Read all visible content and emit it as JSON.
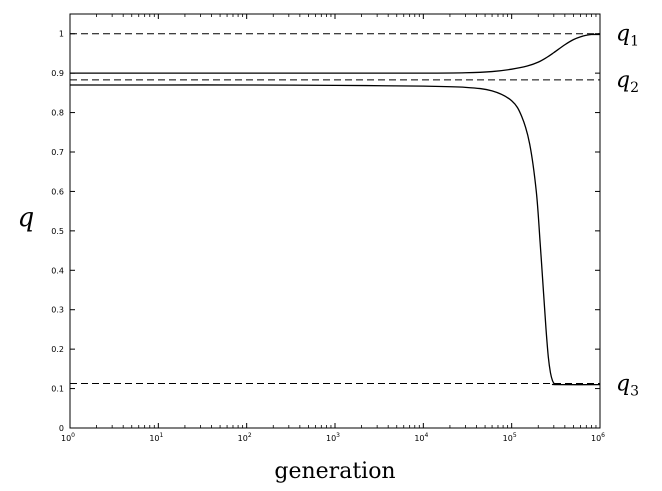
{
  "chart_data": {
    "type": "line",
    "xscale": "log",
    "xlim": [
      1,
      1000000
    ],
    "ylim": [
      0,
      1.05
    ],
    "xlabel": "generation",
    "ylabel": "q",
    "x_ticks": [
      {
        "value": 1,
        "base": "10",
        "exp": "0"
      },
      {
        "value": 10,
        "base": "10",
        "exp": "1"
      },
      {
        "value": 100,
        "base": "10",
        "exp": "2"
      },
      {
        "value": 1000,
        "base": "10",
        "exp": "3"
      },
      {
        "value": 10000,
        "base": "10",
        "exp": "4"
      },
      {
        "value": 100000,
        "base": "10",
        "exp": "5"
      },
      {
        "value": 1000000,
        "base": "10",
        "exp": "6"
      }
    ],
    "y_ticks": [
      {
        "value": 0,
        "label": "0"
      },
      {
        "value": 0.1,
        "label": "0.1"
      },
      {
        "value": 0.2,
        "label": "0.2"
      },
      {
        "value": 0.3,
        "label": "0.3"
      },
      {
        "value": 0.4,
        "label": "0.4"
      },
      {
        "value": 0.5,
        "label": "0.5"
      },
      {
        "value": 0.6,
        "label": "0.6"
      },
      {
        "value": 0.7,
        "label": "0.7"
      },
      {
        "value": 0.8,
        "label": "0.8"
      },
      {
        "value": 0.9,
        "label": "0.9"
      },
      {
        "value": 1,
        "label": "1"
      }
    ],
    "reference_lines": [
      {
        "value": 1.0,
        "base": "q",
        "sub": "1"
      },
      {
        "value": 0.883,
        "base": "q",
        "sub": "2"
      },
      {
        "value": 0.113,
        "base": "q",
        "sub": "3"
      }
    ],
    "series": [
      {
        "x": [
          1,
          10,
          100,
          1000,
          10000,
          30000,
          60000,
          100000,
          150000,
          200000,
          250000,
          300000,
          400000,
          500000,
          600000,
          700000,
          800000,
          1000000
        ],
        "y": [
          0.9,
          0.9,
          0.9,
          0.9,
          0.9,
          0.901,
          0.904,
          0.91,
          0.918,
          0.928,
          0.94,
          0.952,
          0.972,
          0.985,
          0.992,
          0.996,
          0.998,
          0.998
        ]
      },
      {
        "x": [
          1,
          10,
          100,
          1000,
          10000,
          30000,
          60000,
          100000,
          130000,
          160000,
          190000,
          210000,
          230000,
          245000,
          260000,
          275000,
          290000,
          305000,
          320000,
          1000000
        ],
        "y": [
          0.87,
          0.87,
          0.87,
          0.869,
          0.867,
          0.864,
          0.855,
          0.83,
          0.79,
          0.72,
          0.6,
          0.47,
          0.34,
          0.25,
          0.18,
          0.14,
          0.12,
          0.112,
          0.11,
          0.11
        ]
      }
    ]
  }
}
